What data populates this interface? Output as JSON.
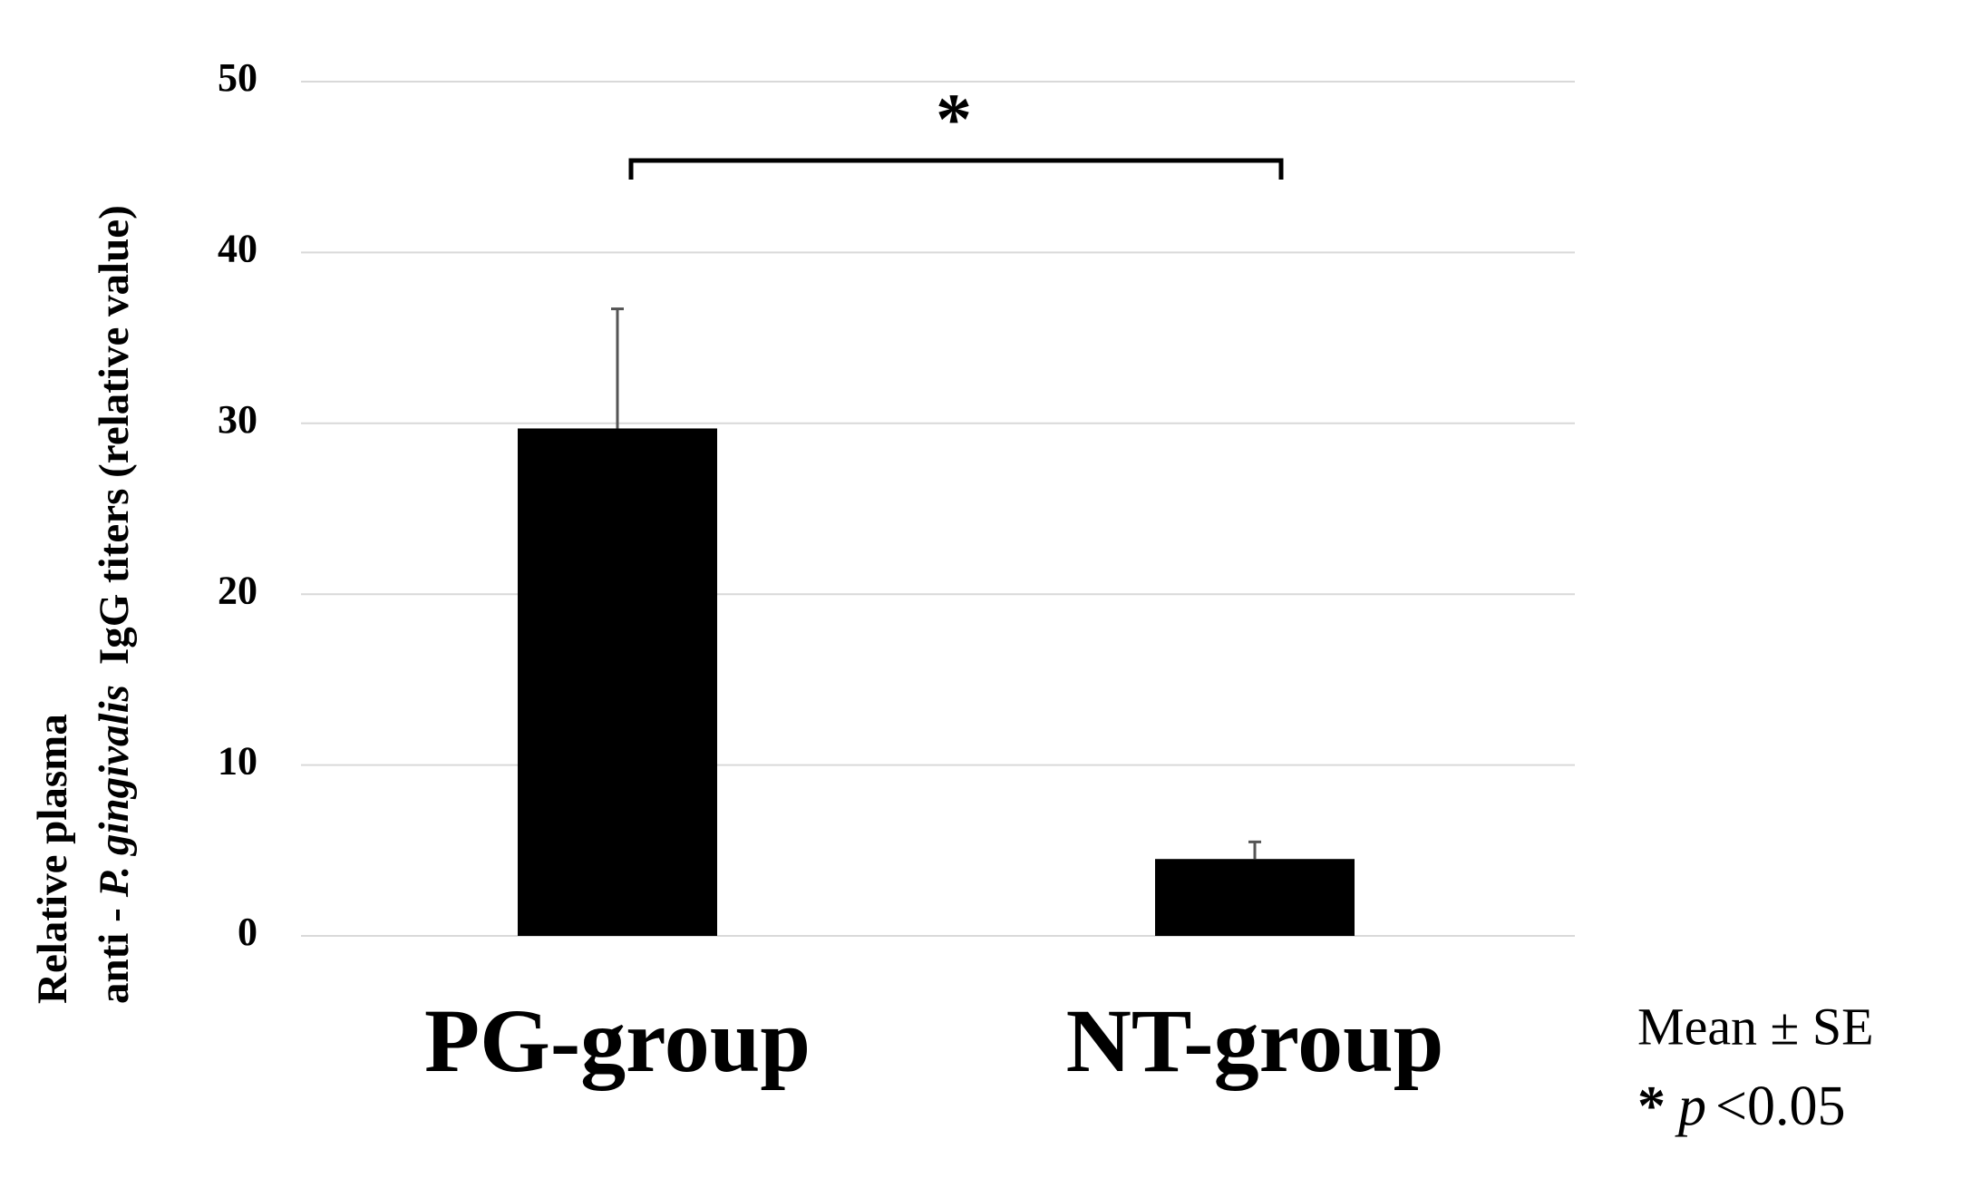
{
  "chart_data": {
    "type": "bar",
    "ylabel": [
      "Relative plasma",
      "anti -",
      "P. gingivalis",
      "IgG titers (relative value)"
    ],
    "categories": [
      "PG-group",
      "NT-group"
    ],
    "series": [
      {
        "color": "#000000",
        "values": [
          29.7,
          4.5
        ],
        "errors": [
          7,
          1
        ]
      }
    ],
    "ylim": [
      0,
      50
    ],
    "yticks": [
      0,
      10,
      20,
      30,
      40,
      50
    ],
    "grid": true,
    "annotation": "*",
    "note": {
      "mean_se": "Mean ± SE",
      "sig": [
        "*",
        "p",
        "<0.05"
      ]
    }
  }
}
